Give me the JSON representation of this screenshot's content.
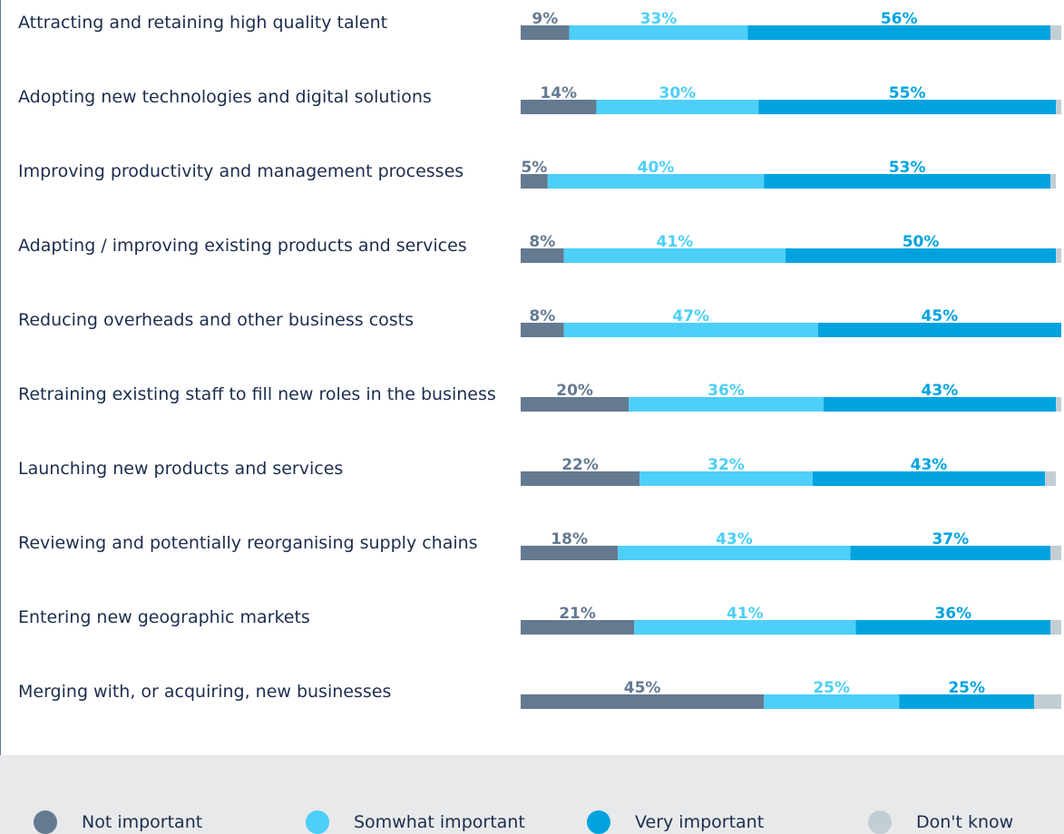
{
  "chart_data": {
    "type": "stacked-bar-horizontal",
    "categories": [
      "Attracting and retaining high quality talent",
      "Adopting new technologies and digital solutions",
      "Improving productivity and management processes",
      "Adapting / improving existing products and services",
      "Reducing overheads and other business costs",
      "Retraining existing staff to fill new roles in the business",
      "Launching new products and services",
      "Reviewing and potentially reorganising supply chains",
      "Entering new geographic markets",
      "Merging with, or acquiring, new businesses"
    ],
    "series": [
      {
        "name": "Not important",
        "color": "#647a91",
        "values": [
          9,
          14,
          5,
          8,
          8,
          20,
          22,
          18,
          21,
          45
        ],
        "value_labels": [
          "9%",
          "14%",
          "5%",
          "8%",
          "8%",
          "20%",
          "22%",
          "18%",
          "21%",
          "45%"
        ]
      },
      {
        "name": "Somwhat important",
        "color": "#4dcff7",
        "values": [
          33,
          30,
          40,
          41,
          47,
          36,
          32,
          43,
          41,
          25
        ],
        "value_labels": [
          "33%",
          "30%",
          "40%",
          "41%",
          "47%",
          "36%",
          "32%",
          "43%",
          "41%",
          "25%"
        ]
      },
      {
        "name": "Very important",
        "color": "#00a3e0",
        "values": [
          56,
          55,
          53,
          50,
          45,
          43,
          43,
          37,
          36,
          25
        ],
        "value_labels": [
          "56%",
          "55%",
          "53%",
          "50%",
          "45%",
          "43%",
          "43%",
          "37%",
          "36%",
          "25%"
        ]
      },
      {
        "name": "Don't know",
        "color": "#c3ced4",
        "values": [
          2,
          1,
          1,
          1,
          0,
          1,
          2,
          2,
          2,
          5
        ]
      }
    ],
    "xlim": [
      0,
      100
    ]
  }
}
